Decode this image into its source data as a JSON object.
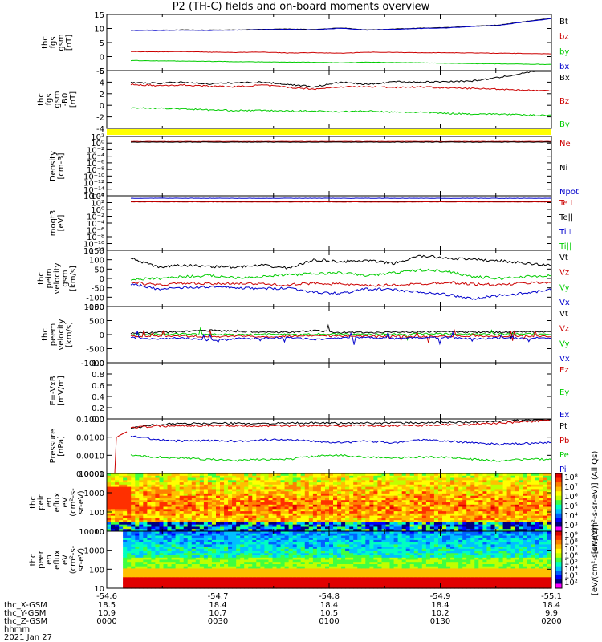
{
  "title": "P2 (TH-C) fields and on-board moments overview",
  "colors": {
    "black": "#000000",
    "red": "#cc0000",
    "green": "#00cc00",
    "blue": "#0000cc",
    "yellow": "#ffff00"
  },
  "chart_data": {
    "type": "line",
    "x_ticks": [
      "-54.6",
      "-54.7",
      "-54.8",
      "-54.9",
      "-55.1"
    ],
    "footer": {
      "row_labels": [
        "thc_X-GSM",
        "thc_Y-GSM",
        "thc_Z-GSM",
        "hhmm",
        "2021 Jan 27"
      ],
      "columns": [
        [
          "18.5",
          "10.9",
          "0000"
        ],
        [
          "18.4",
          "10.7",
          "0030"
        ],
        [
          "18.4",
          "10.5",
          "0100"
        ],
        [
          "18.4",
          "10.2",
          "0130"
        ],
        [
          "18.4",
          "9.9",
          "0200"
        ]
      ]
    },
    "panels": [
      {
        "ylabel": [
          "thc",
          "fgs",
          "gsm",
          "[nT]"
        ],
        "ylim": [
          -5,
          15
        ],
        "yticks": [
          "15",
          "10",
          "5",
          "0",
          "-5"
        ],
        "legend": [
          {
            "name": "Bt",
            "color": "#000000"
          },
          {
            "name": "bz",
            "color": "#cc0000"
          },
          {
            "name": "by",
            "color": "#00cc00"
          },
          {
            "name": "bx",
            "color": "#0000cc"
          }
        ]
      },
      {
        "ylabel": [
          "thc",
          "fgs",
          "gsm",
          "-B0",
          "[nT]"
        ],
        "ylim": [
          -5,
          5
        ],
        "yticks": [
          "6",
          "4",
          "2",
          "0",
          "-2",
          "-4"
        ],
        "legend": [
          {
            "name": "Bx",
            "color": "#000000"
          },
          {
            "name": "Bz",
            "color": "#cc0000"
          },
          {
            "name": "By",
            "color": "#00cc00"
          }
        ]
      },
      {
        "ylabel": [
          "Density",
          "[cm-3]"
        ],
        "ylim": [
          1e-16,
          100
        ],
        "scale": "log",
        "yticks": [
          "10²",
          "10⁰",
          "10⁻²",
          "10⁻⁴",
          "10⁻⁶",
          "10⁻⁸",
          "10⁻¹⁰",
          "10⁻¹²",
          "10⁻¹⁴",
          "10⁻¹⁶"
        ],
        "legend": [
          {
            "name": "Ne",
            "color": "#cc0000"
          },
          {
            "name": "Ni",
            "color": "#000000"
          },
          {
            "name": "Npot",
            "color": "#0000cc"
          }
        ]
      },
      {
        "ylabel": [
          "moqt3",
          "[eV]"
        ],
        "ylim": [
          1e-12,
          10000
        ],
        "scale": "log",
        "yticks": [
          "10⁴",
          "10²",
          "10⁰",
          "10⁻²",
          "10⁻⁴",
          "10⁻⁶",
          "10⁻⁸",
          "10⁻¹⁰",
          "10⁻¹²"
        ],
        "legend": [
          {
            "name": "Te⊥",
            "color": "#cc0000"
          },
          {
            "name": "Te||",
            "color": "#000000"
          },
          {
            "name": "Ti⊥",
            "color": "#0000cc"
          },
          {
            "name": "Ti||",
            "color": "#00cc00"
          }
        ]
      },
      {
        "ylabel": [
          "thc",
          "peim",
          "velocity",
          "gsm",
          "[km/s]"
        ],
        "ylim": [
          -150,
          150
        ],
        "yticks": [
          "150",
          "100",
          "50",
          "0",
          "-50",
          "-100",
          "-150"
        ],
        "legend": [
          {
            "name": "Vt",
            "color": "#000000"
          },
          {
            "name": "Vz",
            "color": "#cc0000"
          },
          {
            "name": "Vy",
            "color": "#00cc00"
          },
          {
            "name": "Vx",
            "color": "#0000cc"
          }
        ]
      },
      {
        "ylabel": [
          "thc",
          "peem",
          "velocity",
          "[km/s]"
        ],
        "ylim": [
          -1000,
          1000
        ],
        "yticks": [
          "1000",
          "500",
          "0",
          "-500",
          "-1000"
        ],
        "legend": [
          {
            "name": "Vt",
            "color": "#000000"
          },
          {
            "name": "Vz",
            "color": "#cc0000"
          },
          {
            "name": "Vy",
            "color": "#00cc00"
          },
          {
            "name": "Vx",
            "color": "#0000cc"
          }
        ]
      },
      {
        "ylabel": [
          "E=-VxB",
          "[mV/m]"
        ],
        "ylim": [
          0,
          1
        ],
        "yticks": [
          "1.0",
          "0.8",
          "0.6",
          "0.4",
          "0.2",
          "0.0"
        ],
        "legend": [
          {
            "name": "Ez",
            "color": "#cc0000"
          },
          {
            "name": "Ey",
            "color": "#00cc00"
          },
          {
            "name": "Ex",
            "color": "#0000cc"
          }
        ]
      },
      {
        "ylabel": [
          "Pressure",
          "[nPa]"
        ],
        "ylim": [
          0.0001,
          0.1
        ],
        "scale": "log",
        "yticks": [
          "0.1000",
          "0.0100",
          "0.0010",
          "0.0001"
        ],
        "legend": [
          {
            "name": "Pt",
            "color": "#000000"
          },
          {
            "name": "Pb",
            "color": "#cc0000"
          },
          {
            "name": "Pe",
            "color": "#00cc00"
          },
          {
            "name": "Pi",
            "color": "#0000cc"
          }
        ]
      },
      {
        "ylabel": [
          "thc",
          "peir",
          "en",
          "eflux",
          "eV",
          "(cm²-s-",
          "sr-eV)"
        ],
        "ylim": [
          10,
          10000
        ],
        "scale": "log",
        "yticks": [
          "10000",
          "1000",
          "100",
          "10"
        ],
        "colorbar": {
          "ticks": [
            "10⁸",
            "10⁷",
            "10⁶",
            "10⁵",
            "10⁴",
            "10³"
          ],
          "label": "[eV/(cm²-s-sr-eV)] (All Qs)"
        }
      },
      {
        "ylabel": [
          "thc",
          "peer",
          "en",
          "eflux",
          "eV",
          "(cm²-s-",
          "sr-eV)"
        ],
        "ylim": [
          10,
          10000
        ],
        "scale": "log",
        "yticks": [
          "10000",
          "1000",
          "100",
          "10"
        ],
        "colorbar": {
          "ticks": [
            "10⁹",
            "10⁸",
            "10⁷",
            "10⁶",
            "10⁵",
            "10⁴",
            "10³",
            "10²"
          ],
          "label": "[eV/(cm²-s-sr-eV)]"
        }
      }
    ],
    "series": [
      {
        "panel": 0,
        "name": "Bt",
        "color": "#000000",
        "y": [
          9.4,
          9.4,
          9.5,
          9.4,
          9.5,
          9.7,
          9.8,
          9.6,
          10.2,
          9.5,
          9.8,
          10.1,
          10.3,
          10.8,
          11.2,
          12.5,
          13.6
        ]
      },
      {
        "panel": 0,
        "name": "bx",
        "color": "#0000cc",
        "y": [
          9.3,
          9.3,
          9.4,
          9.3,
          9.4,
          9.6,
          9.7,
          9.5,
          10.1,
          9.4,
          9.7,
          10.0,
          10.2,
          10.7,
          11.1,
          12.4,
          13.5
        ]
      },
      {
        "panel": 0,
        "name": "bz",
        "color": "#cc0000",
        "y": [
          1.8,
          1.7,
          1.8,
          1.6,
          1.5,
          1.6,
          1.3,
          1.4,
          1.2,
          1.6,
          1.5,
          1.4,
          1.4,
          1.3,
          1.2,
          1.1,
          1.0
        ]
      },
      {
        "panel": 0,
        "name": "by",
        "color": "#00cc00",
        "y": [
          -1.4,
          -1.5,
          -1.6,
          -1.7,
          -1.8,
          -1.9,
          -2.0,
          -2.0,
          -2.2,
          -2.0,
          -2.1,
          -2.2,
          -2.4,
          -2.5,
          -2.6,
          -2.7,
          -2.8
        ]
      },
      {
        "panel": 1,
        "name": "Bx",
        "color": "#000000",
        "y": [
          2.9,
          2.8,
          3.0,
          2.7,
          2.9,
          3.0,
          2.6,
          2.2,
          3.0,
          2.6,
          3.1,
          3.0,
          3.1,
          3.2,
          3.8,
          4.6,
          5.5
        ]
      },
      {
        "panel": 1,
        "name": "Bz",
        "color": "#cc0000",
        "y": [
          2.6,
          2.4,
          2.5,
          2.3,
          2.2,
          2.5,
          2.1,
          1.8,
          2.2,
          2.2,
          2.1,
          2.2,
          2.0,
          1.9,
          1.8,
          1.6,
          1.5
        ]
      },
      {
        "panel": 1,
        "name": "By",
        "color": "#00cc00",
        "y": [
          -1.4,
          -1.5,
          -1.6,
          -1.8,
          -1.9,
          -1.9,
          -2.0,
          -2.0,
          -2.1,
          -2.0,
          -2.2,
          -2.2,
          -2.4,
          -2.5,
          -2.5,
          -2.7,
          -2.7
        ]
      },
      {
        "panel": 2,
        "name": "Ne",
        "color": "#cc0000",
        "y": [
          3,
          3,
          3,
          3,
          3,
          3,
          3,
          3,
          3,
          3,
          3,
          3,
          3,
          3,
          3,
          3,
          3
        ]
      },
      {
        "panel": 2,
        "name": "Ni",
        "color": "#000000",
        "y": [
          2,
          2,
          2,
          2,
          2,
          2,
          2,
          2,
          2,
          2,
          2,
          2,
          2,
          2,
          2,
          2,
          2
        ]
      },
      {
        "panel": 3,
        "name": "Te||",
        "color": "#000000",
        "y": [
          200,
          210,
          205,
          200,
          195,
          190,
          200,
          205,
          200,
          195,
          190,
          200,
          205,
          200,
          195,
          200,
          200
        ]
      },
      {
        "panel": 3,
        "name": "Te⊥",
        "color": "#cc0000",
        "y": [
          160,
          170,
          165,
          160,
          155,
          150,
          160,
          165,
          160,
          155,
          150,
          160,
          165,
          160,
          155,
          160,
          160
        ]
      },
      {
        "panel": 3,
        "name": "Ti⊥",
        "color": "#0000cc",
        "y": [
          1800,
          1850,
          1900,
          1850,
          1800,
          1850,
          1900,
          1850,
          1800,
          1850,
          1900,
          1850,
          1800,
          1850,
          1800,
          1850,
          1800
        ]
      },
      {
        "panel": 4,
        "name": "Vt",
        "color": "#000000",
        "y": [
          110,
          60,
          70,
          65,
          60,
          70,
          55,
          100,
          90,
          95,
          80,
          120,
          110,
          100,
          95,
          80,
          70
        ]
      },
      {
        "panel": 4,
        "name": "Vy",
        "color": "#00cc00",
        "y": [
          -5,
          0,
          10,
          15,
          5,
          10,
          20,
          25,
          30,
          15,
          30,
          45,
          40,
          10,
          0,
          10,
          15
        ]
      },
      {
        "panel": 4,
        "name": "Vz",
        "color": "#cc0000",
        "y": [
          -20,
          -35,
          -25,
          -30,
          -25,
          -30,
          -35,
          -25,
          -30,
          -40,
          -35,
          -30,
          -20,
          -30,
          -35,
          -25,
          -20
        ]
      },
      {
        "panel": 4,
        "name": "Vx",
        "color": "#0000cc",
        "y": [
          -30,
          -55,
          -50,
          -45,
          -50,
          -55,
          -50,
          -75,
          -80,
          -55,
          -60,
          -75,
          -85,
          -110,
          -90,
          -80,
          -60
        ]
      },
      {
        "panel": 5,
        "name": "Vt",
        "color": "#000000",
        "y": [
          50,
          80,
          100,
          150,
          120,
          80,
          90,
          140,
          70,
          80,
          90,
          100,
          110,
          90,
          80,
          100,
          90
        ]
      },
      {
        "panel": 5,
        "name": "Vy",
        "color": "#00cc00",
        "y": [
          0,
          10,
          20,
          10,
          5,
          15,
          10,
          20,
          10,
          10,
          20,
          20,
          30,
          10,
          15,
          20,
          10
        ]
      },
      {
        "panel": 5,
        "name": "Vz",
        "color": "#cc0000",
        "y": [
          -50,
          -60,
          -40,
          -80,
          -50,
          -70,
          -60,
          -40,
          -50,
          -60,
          -50,
          -70,
          -60,
          -50,
          -60,
          -50,
          -60
        ]
      },
      {
        "panel": 5,
        "name": "Vx",
        "color": "#0000cc",
        "y": [
          -100,
          -150,
          -120,
          -200,
          -150,
          -130,
          -100,
          -180,
          -120,
          -100,
          -140,
          -110,
          -100,
          -150,
          -120,
          -130,
          -110
        ]
      },
      {
        "panel": 7,
        "name": "Pt",
        "color": "#000000",
        "y": [
          0.03,
          0.05,
          0.055,
          0.058,
          0.057,
          0.055,
          0.058,
          0.06,
          0.058,
          0.06,
          0.06,
          0.062,
          0.065,
          0.068,
          0.075,
          0.085,
          0.1
        ]
      },
      {
        "panel": 7,
        "name": "Pb",
        "color": "#cc0000",
        "y": [
          0.035,
          0.04,
          0.042,
          0.045,
          0.042,
          0.04,
          0.043,
          0.044,
          0.042,
          0.044,
          0.043,
          0.045,
          0.048,
          0.05,
          0.06,
          0.07,
          0.085
        ]
      },
      {
        "panel": 7,
        "name": "Pi",
        "color": "#0000cc",
        "y": [
          0.012,
          0.007,
          0.006,
          0.0065,
          0.006,
          0.007,
          0.0075,
          0.006,
          0.005,
          0.006,
          0.005,
          0.007,
          0.006,
          0.005,
          0.004,
          0.0045,
          0.005
        ]
      },
      {
        "panel": 7,
        "name": "Pe",
        "color": "#00cc00",
        "y": [
          0.001,
          0.0008,
          0.0007,
          0.0006,
          0.0005,
          0.0006,
          0.0006,
          0.0009,
          0.001,
          0.0008,
          0.0007,
          0.0008,
          0.0008,
          0.0006,
          0.0005,
          0.0006,
          0.0006
        ]
      }
    ]
  }
}
